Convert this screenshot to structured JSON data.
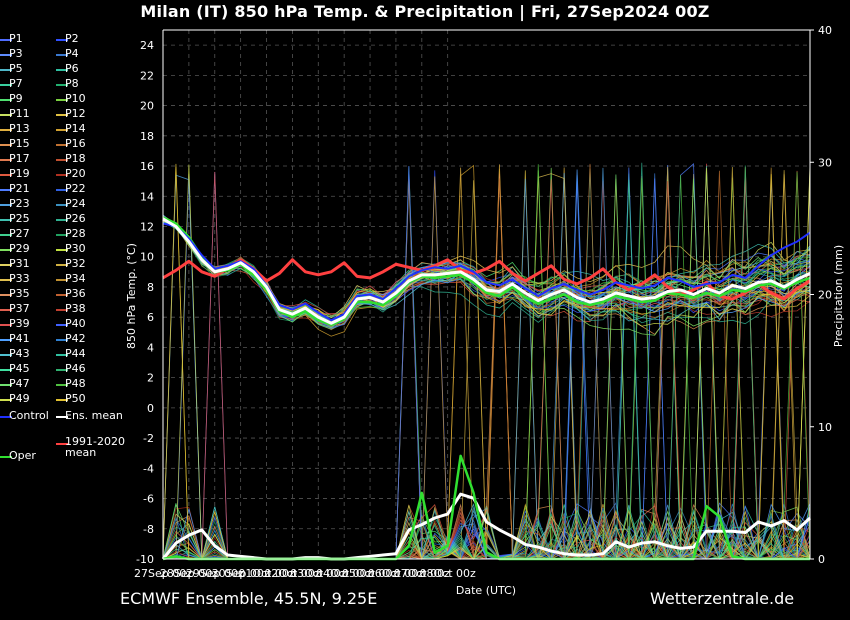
{
  "header": {
    "title": "Milan  (IT)  850 hPa Temp. & Precipitation | Fri, 27Sep2024 00Z"
  },
  "footer": {
    "left": "ECMWF Ensemble, 45.5N, 9.25E",
    "right": "Wetterzentrale.de"
  },
  "legend": {
    "members": [
      {
        "label": "P1",
        "color": "#4f6dff"
      },
      {
        "label": "P2",
        "color": "#3050ff"
      },
      {
        "label": "P3",
        "color": "#5f8cff"
      },
      {
        "label": "P4",
        "color": "#3a78d0"
      },
      {
        "label": "P5",
        "color": "#4fb6c8"
      },
      {
        "label": "P6",
        "color": "#2fbfa0"
      },
      {
        "label": "P7",
        "color": "#3ad0a0"
      },
      {
        "label": "P8",
        "color": "#22b070"
      },
      {
        "label": "P9",
        "color": "#50e070"
      },
      {
        "label": "P10",
        "color": "#7ad040"
      },
      {
        "label": "P11",
        "color": "#c8e060"
      },
      {
        "label": "P12",
        "color": "#e0c040"
      },
      {
        "label": "P13",
        "color": "#e0b040"
      },
      {
        "label": "P14",
        "color": "#d0a030"
      },
      {
        "label": "P15",
        "color": "#e09050"
      },
      {
        "label": "P16",
        "color": "#c07030"
      },
      {
        "label": "P17",
        "color": "#e07a50"
      },
      {
        "label": "P18",
        "color": "#c05030"
      },
      {
        "label": "P19",
        "color": "#e05a40"
      },
      {
        "label": "P20",
        "color": "#b03020"
      },
      {
        "label": "P21",
        "color": "#4f7dff"
      },
      {
        "label": "P22",
        "color": "#3060e0"
      },
      {
        "label": "P23",
        "color": "#4fa0e0"
      },
      {
        "label": "P24",
        "color": "#3a90c0"
      },
      {
        "label": "P25",
        "color": "#40c0b0"
      },
      {
        "label": "P26",
        "color": "#30b090"
      },
      {
        "label": "P27",
        "color": "#40d090"
      },
      {
        "label": "P28",
        "color": "#20a060"
      },
      {
        "label": "P29",
        "color": "#80e060"
      },
      {
        "label": "P30",
        "color": "#c0e040"
      },
      {
        "label": "P31",
        "color": "#e0d060"
      },
      {
        "label": "P32",
        "color": "#d0b040"
      },
      {
        "label": "P33",
        "color": "#e0c050"
      },
      {
        "label": "P34",
        "color": "#c09030"
      },
      {
        "label": "P35",
        "color": "#e09060"
      },
      {
        "label": "P36",
        "color": "#c06030"
      },
      {
        "label": "P37",
        "color": "#e06050"
      },
      {
        "label": "P38",
        "color": "#c04030"
      },
      {
        "label": "P39",
        "color": "#e05050"
      },
      {
        "label": "P40",
        "color": "#4060ff"
      },
      {
        "label": "P41",
        "color": "#50a0ff"
      },
      {
        "label": "P42",
        "color": "#3080d0"
      },
      {
        "label": "P43",
        "color": "#50c0d0"
      },
      {
        "label": "P44",
        "color": "#30c0a0"
      },
      {
        "label": "P45",
        "color": "#40e0a0"
      },
      {
        "label": "P46",
        "color": "#30b070"
      },
      {
        "label": "P47",
        "color": "#70e070"
      },
      {
        "label": "P48",
        "color": "#50c040"
      },
      {
        "label": "P49",
        "color": "#d0e050"
      },
      {
        "label": "P50",
        "color": "#e0c030"
      }
    ],
    "control": {
      "label": "Control",
      "color": "#2030ff"
    },
    "ens_mean": {
      "label": "Ens. mean",
      "color": "#ffffff"
    },
    "clim_mean": {
      "label": "1991-2020\nmean",
      "color": "#ff4040"
    },
    "oper": {
      "label": "Oper",
      "color": "#30e030"
    }
  },
  "chart_data": {
    "type": "line",
    "title": "Milan  (IT)  850 hPa Temp. & Precipitation | Fri, 27Sep2024 00Z",
    "xlabel": "Date (UTC)",
    "ylabel": "850 hPa Temp. (°C)",
    "y2label": "Precipitation (mm)",
    "ylim": [
      -10,
      25
    ],
    "y2lim": [
      0,
      40
    ],
    "yticks": [
      -10,
      -8,
      -6,
      -4,
      -2,
      0,
      2,
      4,
      6,
      8,
      10,
      12,
      14,
      16,
      18,
      20,
      22,
      24
    ],
    "y2ticks": [
      0,
      10,
      20,
      30,
      40
    ],
    "x_tick_labels": [
      "27Sep 00z",
      "28Sep 00z",
      "29Sep 00z",
      "30Sep 00z",
      "01Oct 00z",
      "02Oct 00z",
      "03Oct 00z",
      "04Oct 00z",
      "05Oct 00z",
      "06Oct 00z",
      "07Oct 00z",
      "08Oct 00z"
    ],
    "x_hours": [
      0,
      12,
      24,
      36,
      48,
      60,
      72,
      84,
      96,
      108,
      120,
      132,
      144,
      156,
      168,
      180,
      192,
      204,
      216,
      228,
      240,
      252,
      264,
      276,
      288,
      300,
      312,
      324,
      336,
      348,
      360,
      372,
      384,
      396,
      408,
      420,
      432,
      444,
      456,
      468,
      480,
      492,
      504,
      516,
      528,
      540,
      552,
      564,
      576,
      588,
      600
    ],
    "grid": true,
    "series": [
      {
        "name": "Ens. mean",
        "axis": "temp",
        "color": "#ffffff",
        "width": 3,
        "values": [
          12.5,
          12.0,
          11.0,
          9.8,
          9.0,
          9.2,
          9.6,
          9.0,
          8.0,
          6.5,
          6.2,
          6.6,
          6.0,
          5.6,
          6.0,
          7.2,
          7.3,
          7.0,
          7.6,
          8.4,
          8.8,
          8.8,
          8.9,
          9.0,
          8.5,
          7.8,
          7.7,
          8.2,
          7.6,
          7.1,
          7.5,
          7.8,
          7.3,
          7.0,
          7.2,
          7.6,
          7.4,
          7.2,
          7.3,
          7.7,
          7.8,
          7.5,
          7.9,
          7.6,
          8.1,
          7.9,
          8.3,
          8.4,
          8.0,
          8.5,
          8.9
        ]
      },
      {
        "name": "1991-2020 mean",
        "axis": "temp",
        "color": "#ff4040",
        "width": 3,
        "values": [
          8.6,
          9.1,
          9.7,
          9.0,
          8.7,
          9.2,
          9.8,
          9.2,
          8.4,
          8.9,
          9.8,
          9.0,
          8.8,
          9.0,
          9.6,
          8.7,
          8.6,
          9.0,
          9.5,
          9.3,
          9.1,
          9.4,
          9.8,
          9.1,
          8.9,
          9.2,
          9.7,
          8.9,
          8.4,
          8.9,
          9.4,
          8.5,
          8.2,
          8.6,
          9.2,
          8.3,
          7.8,
          8.2,
          8.8,
          8.0,
          7.5,
          7.8,
          8.3,
          7.4,
          7.2,
          7.6,
          8.2,
          7.6,
          7.2,
          7.9,
          8.4
        ]
      },
      {
        "name": "Control",
        "axis": "temp",
        "color": "#2030ff",
        "width": 2,
        "values": [
          12.2,
          12.0,
          11.2,
          10.1,
          9.2,
          9.4,
          9.7,
          9.2,
          8.1,
          6.8,
          6.5,
          6.9,
          6.3,
          5.8,
          6.2,
          7.4,
          7.5,
          7.2,
          7.9,
          8.7,
          9.1,
          9.3,
          9.2,
          9.4,
          9.0,
          8.3,
          8.1,
          8.5,
          7.9,
          7.4,
          7.9,
          8.2,
          7.8,
          7.5,
          7.8,
          8.3,
          8.1,
          7.9,
          8.1,
          8.6,
          8.4,
          8.0,
          8.2,
          8.3,
          8.8,
          8.6,
          9.4,
          10.1,
          10.6,
          11.0,
          11.6
        ]
      },
      {
        "name": "Oper",
        "axis": "temp",
        "color": "#30e030",
        "width": 2.5,
        "values": [
          12.6,
          12.2,
          11.3,
          10.0,
          9.0,
          9.1,
          9.5,
          8.8,
          7.8,
          6.4,
          6.0,
          6.4,
          5.8,
          5.5,
          5.9,
          7.0,
          7.0,
          6.8,
          7.4,
          8.3,
          8.7,
          8.6,
          8.7,
          8.8,
          8.3,
          7.6,
          7.4,
          8.0,
          7.3,
          6.9,
          7.2,
          7.5,
          7.0,
          6.8,
          7.0,
          7.4,
          7.2,
          7.0,
          7.1,
          7.6,
          7.5,
          7.3,
          7.6,
          7.4,
          7.8,
          7.7,
          8.1,
          8.2,
          7.9,
          8.3,
          8.6
        ]
      },
      {
        "name": "Ens. mean precip",
        "axis": "precip",
        "color": "#ffffff",
        "width": 3,
        "values": [
          0,
          1.2,
          1.8,
          2.2,
          1.0,
          0.3,
          0.2,
          0.1,
          0.0,
          0.0,
          0.0,
          0.1,
          0.1,
          0.0,
          0.0,
          0.1,
          0.2,
          0.3,
          0.4,
          2.2,
          2.6,
          3.1,
          3.4,
          4.9,
          4.6,
          2.8,
          2.2,
          1.7,
          1.1,
          0.9,
          0.6,
          0.4,
          0.3,
          0.3,
          0.4,
          1.3,
          0.9,
          1.2,
          1.3,
          1.0,
          0.8,
          0.9,
          2.1,
          2.1,
          2.1,
          2.0,
          2.8,
          2.5,
          2.9,
          2.2,
          3.1
        ]
      },
      {
        "name": "Oper precip",
        "axis": "precip",
        "color": "#30e030",
        "width": 2.5,
        "values": [
          0,
          0.2,
          0.0,
          0.0,
          0.0,
          0.0,
          0.0,
          0.0,
          0.0,
          0.0,
          0.0,
          0.0,
          0.0,
          0.0,
          0.0,
          0.0,
          0.0,
          0.0,
          0.0,
          1.0,
          5.0,
          0.5,
          1.0,
          7.8,
          5.0,
          0.5,
          0.0,
          0.0,
          0.0,
          0.0,
          0.0,
          0.0,
          0.0,
          0.0,
          0.0,
          0.0,
          0.0,
          0.0,
          0.0,
          0.0,
          0.0,
          0.0,
          4.0,
          3.2,
          0.2,
          0.0,
          0.0,
          0.0,
          0.0,
          0.0,
          0.0
        ]
      }
    ]
  }
}
